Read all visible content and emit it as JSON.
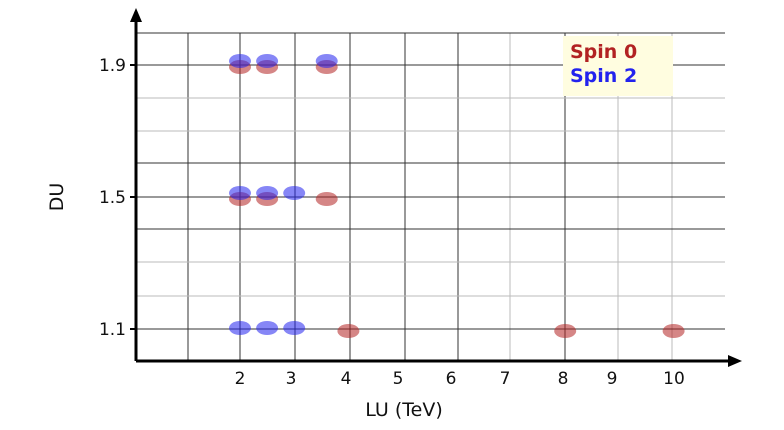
{
  "chart_data": {
    "type": "scatter",
    "title": "",
    "xlabel": "LU (TeV)",
    "ylabel": "DU",
    "x_ticks": [
      "2",
      "3",
      "4",
      "5",
      "6",
      "7",
      "8",
      "9",
      "10"
    ],
    "y_ticks": [
      "1.1",
      "1.5",
      "1.9"
    ],
    "x_tick_values": [
      2,
      3,
      4,
      5,
      6,
      7,
      8,
      9,
      10
    ],
    "y_tick_values": [
      1.1,
      1.5,
      1.9
    ],
    "grid": true,
    "legend_position": "top-right",
    "series": [
      {
        "name": "Spin 0",
        "color": "#b22222",
        "points": [
          {
            "x": 2,
            "y": 1.9
          },
          {
            "x": 2.5,
            "y": 1.9
          },
          {
            "x": 3.6,
            "y": 1.9
          },
          {
            "x": 2,
            "y": 1.5
          },
          {
            "x": 2.5,
            "y": 1.5
          },
          {
            "x": 3.6,
            "y": 1.5
          },
          {
            "x": 4,
            "y": 1.1
          },
          {
            "x": 8,
            "y": 1.1
          },
          {
            "x": 10,
            "y": 1.1
          }
        ]
      },
      {
        "name": "Spin 2",
        "color": "#2222ee",
        "points": [
          {
            "x": 2,
            "y": 1.9
          },
          {
            "x": 2.5,
            "y": 1.9
          },
          {
            "x": 3.6,
            "y": 1.9
          },
          {
            "x": 2,
            "y": 1.5
          },
          {
            "x": 2.5,
            "y": 1.5
          },
          {
            "x": 3,
            "y": 1.5
          },
          {
            "x": 2,
            "y": 1.1
          },
          {
            "x": 2.5,
            "y": 1.1
          },
          {
            "x": 3,
            "y": 1.1
          }
        ]
      }
    ]
  }
}
